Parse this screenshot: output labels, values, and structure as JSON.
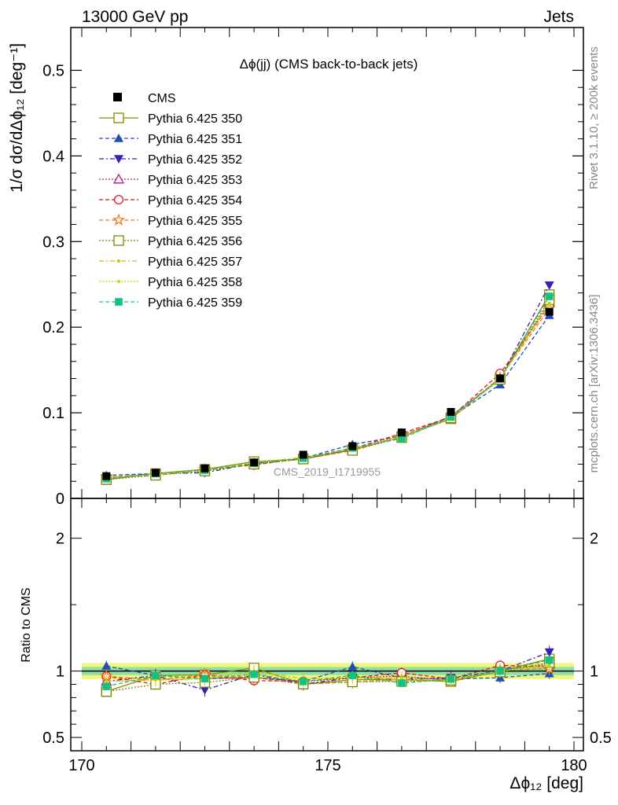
{
  "header": {
    "left": "13000 GeV pp",
    "right": "Jets"
  },
  "side_text": {
    "rivet": "Rivet 3.1.10, ≥ 200k events",
    "mcplots": "mcplots.cern.ch [arXiv:1306.3436]"
  },
  "chart_data": [
    {
      "type": "line",
      "title": "Δϕ(jj) (CMS back-to-back jets)",
      "watermark": "CMS_2019_I1719955",
      "xlabel": "Δϕ₁₂ [deg]",
      "ylabel": "1/σ dσ/dΔϕ₁₂ [deg⁻¹]",
      "xlim": [
        170,
        180
      ],
      "ylim": [
        0,
        0.55
      ],
      "y_ticks": [
        "0",
        "0.1",
        "0.2",
        "0.3",
        "0.4",
        "0.5"
      ],
      "x": [
        170.5,
        171.5,
        172.5,
        173.5,
        174.5,
        175.5,
        176.5,
        177.5,
        178.5,
        179.5
      ],
      "data": {
        "name": "CMS",
        "values": [
          0.026,
          0.03,
          0.035,
          0.042,
          0.051,
          0.061,
          0.077,
          0.101,
          0.14,
          0.218
        ],
        "errors": [
          0.001,
          0.001,
          0.001,
          0.001,
          0.001,
          0.001,
          0.001,
          0.002,
          0.002,
          0.003
        ]
      },
      "series": [
        {
          "name": "Pythia 6.425 350",
          "color": "#8a8a00",
          "dash": "solid",
          "marker": "open-square",
          "values": [
            0.022,
            0.029,
            0.034,
            0.043,
            0.046,
            0.057,
            0.072,
            0.093,
            0.14,
            0.238
          ]
        },
        {
          "name": "Pythia 6.425 351",
          "color": "#1f4fb4",
          "dash": "dashed",
          "marker": "filled-triangle-up",
          "values": [
            0.027,
            0.029,
            0.033,
            0.04,
            0.047,
            0.063,
            0.073,
            0.095,
            0.133,
            0.214
          ]
        },
        {
          "name": "Pythia 6.425 352",
          "color": "#3a1fb4",
          "dash": "dashdot",
          "marker": "filled-triangle-down",
          "values": [
            0.024,
            0.029,
            0.03,
            0.041,
            0.046,
            0.058,
            0.072,
            0.096,
            0.14,
            0.249
          ]
        },
        {
          "name": "Pythia 6.425 353",
          "color": "#c0158a",
          "dash": "dotted",
          "marker": "open-triangle-up",
          "values": [
            0.024,
            0.028,
            0.033,
            0.04,
            0.047,
            0.058,
            0.074,
            0.094,
            0.141,
            0.229
          ]
        },
        {
          "name": "Pythia 6.425 354",
          "color": "#e8141e",
          "dash": "dashed",
          "marker": "open-circle",
          "values": [
            0.025,
            0.027,
            0.034,
            0.039,
            0.047,
            0.058,
            0.076,
            0.095,
            0.146,
            0.225
          ]
        },
        {
          "name": "Pythia 6.425 355",
          "color": "#f07818",
          "dash": "dashed",
          "marker": "open-star",
          "values": [
            0.025,
            0.028,
            0.034,
            0.04,
            0.046,
            0.056,
            0.072,
            0.094,
            0.141,
            0.222
          ]
        },
        {
          "name": "Pythia 6.425 356",
          "color": "#7a8a00",
          "dash": "dotted",
          "marker": "open-square",
          "values": [
            0.022,
            0.027,
            0.032,
            0.04,
            0.046,
            0.056,
            0.071,
            0.094,
            0.139,
            0.232
          ]
        },
        {
          "name": "Pythia 6.425 357",
          "color": "#d8c000",
          "dash": "dashdot",
          "marker": "small-dot",
          "values": [
            0.024,
            0.028,
            0.033,
            0.042,
            0.048,
            0.058,
            0.072,
            0.094,
            0.14,
            0.228
          ]
        },
        {
          "name": "Pythia 6.425 358",
          "color": "#c8d800",
          "dash": "dotted",
          "marker": "small-dot",
          "values": [
            0.024,
            0.028,
            0.033,
            0.042,
            0.047,
            0.058,
            0.073,
            0.094,
            0.14,
            0.226
          ]
        },
        {
          "name": "Pythia 6.425 359",
          "color": "#18c080",
          "dash": "dashed",
          "marker": "filled-square",
          "values": [
            0.023,
            0.029,
            0.033,
            0.041,
            0.047,
            0.059,
            0.07,
            0.095,
            0.14,
            0.236
          ]
        }
      ]
    },
    {
      "type": "line",
      "title": "",
      "xlabel": "Δϕ₁₂ [deg]",
      "ylabel": "Ratio to CMS",
      "xlim": [
        170,
        180
      ],
      "ylim": [
        0.4,
        2.3
      ],
      "y_ticks": [
        "0.5",
        "1",
        "2"
      ],
      "x_ticks": [
        "170",
        "175",
        "180"
      ],
      "band_inner": [
        0.97,
        1.03
      ],
      "band_outer": [
        0.94,
        1.06
      ],
      "reference": 1
    }
  ]
}
